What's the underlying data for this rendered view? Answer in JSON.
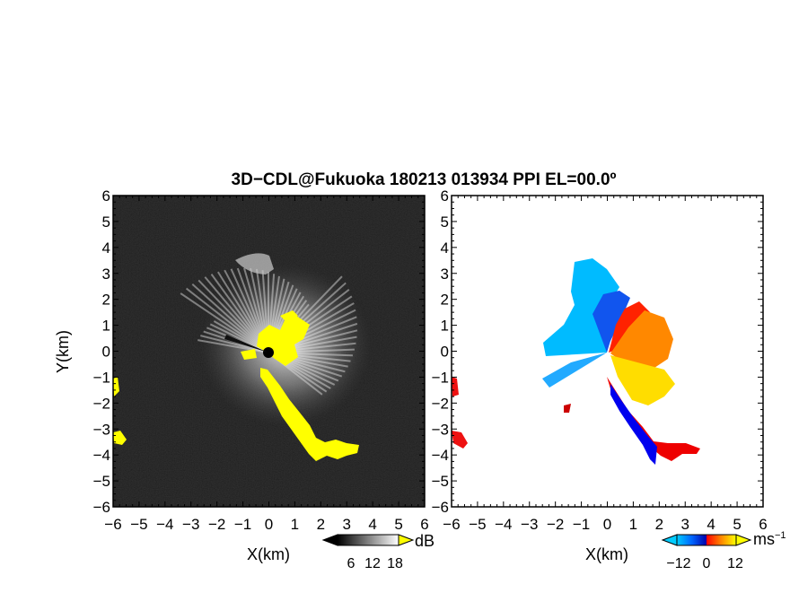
{
  "chart_data": [
    {
      "type": "heatmap",
      "panel": "reflectivity",
      "title": "3D−CDL@Fukuoka 180213 013934 PPI EL=00.0º",
      "xlabel": "X(km)",
      "ylabel": "Y(km)",
      "xlim": [
        -6,
        6
      ],
      "ylim": [
        -6,
        6
      ],
      "x_ticks": [
        "−6",
        "−5",
        "−4",
        "−3",
        "−2",
        "−1",
        "0",
        "1",
        "2",
        "3",
        "4",
        "5",
        "6"
      ],
      "y_ticks": [
        "6",
        "5",
        "4",
        "3",
        "2",
        "1",
        "0",
        "−1",
        "−2",
        "−3",
        "−4",
        "−5",
        "−6"
      ],
      "colorbar": {
        "unit": "dB",
        "ticks": [
          "6",
          "12",
          "18"
        ],
        "colors": [
          "#000000",
          "#ffffff",
          "#ffff00"
        ]
      }
    },
    {
      "type": "heatmap",
      "panel": "doppler-velocity",
      "xlabel": "X(km)",
      "xlim": [
        -6,
        6
      ],
      "ylim": [
        -6,
        6
      ],
      "x_ticks": [
        "−6",
        "−5",
        "−4",
        "−3",
        "−2",
        "−1",
        "0",
        "1",
        "2",
        "3",
        "4",
        "5",
        "6"
      ],
      "y_ticks": [
        "6",
        "5",
        "4",
        "3",
        "2",
        "1",
        "0",
        "−1",
        "−2",
        "−3",
        "−4",
        "−5",
        "−6"
      ],
      "colorbar": {
        "unit": "ms",
        "unit_exponent": "−1",
        "ticks": [
          "−12",
          "0",
          "12"
        ],
        "colors": [
          "#00ccff",
          "#0066ff",
          "#0000cc",
          "#ff0000",
          "#ff8800",
          "#ffff00"
        ]
      }
    }
  ]
}
